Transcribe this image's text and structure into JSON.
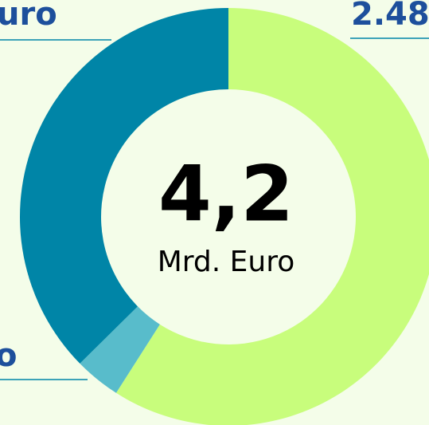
{
  "chart_data": {
    "type": "donut",
    "center_value": "4,2",
    "center_label": "Mrd. Euro",
    "annotations": [
      "uro",
      "2.48",
      "o"
    ],
    "categories": [
      null,
      null,
      null
    ],
    "values": [
      2.48,
      0.15,
      1.57
    ],
    "colors": [
      "#c8fd7c",
      "#58bccb",
      "#0085a7"
    ]
  }
}
